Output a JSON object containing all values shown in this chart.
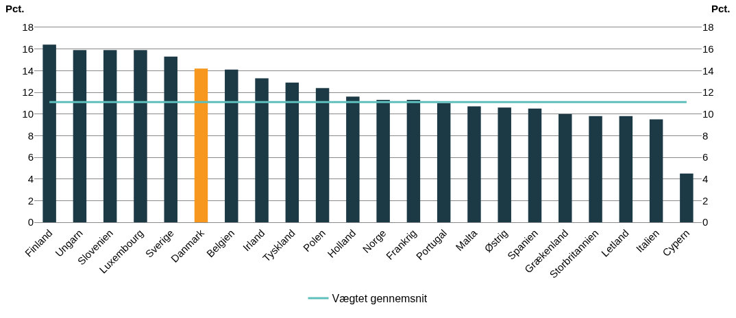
{
  "chart_data": {
    "type": "bar",
    "ylabel": "Pct.",
    "y2label": "Pct.",
    "categories": [
      "Finland",
      "Ungarn",
      "Slovenien",
      "Luxembourg",
      "Sverige",
      "Danmark",
      "Belgien",
      "Irland",
      "Tyskland",
      "Polen",
      "Holland",
      "Norge",
      "Frankrig",
      "Portugal",
      "Malta",
      "Østrig",
      "Spanien",
      "Grækenland",
      "Storbritannien",
      "Letland",
      "Italien",
      "Cypern"
    ],
    "series": [
      {
        "colors": [
          "#1c3a46",
          "#1c3a46",
          "#1c3a46",
          "#1c3a46",
          "#1c3a46",
          "#f7971e",
          "#1c3a46",
          "#1c3a46",
          "#1c3a46",
          "#1c3a46",
          "#1c3a46",
          "#1c3a46",
          "#1c3a46",
          "#1c3a46",
          "#1c3a46",
          "#1c3a46",
          "#1c3a46",
          "#1c3a46",
          "#1c3a46",
          "#1c3a46",
          "#1c3a46",
          "#1c3a46"
        ],
        "values": [
          16.4,
          15.9,
          15.9,
          15.9,
          15.3,
          14.2,
          14.1,
          13.3,
          12.9,
          12.4,
          11.6,
          11.3,
          11.3,
          11.0,
          10.7,
          10.6,
          10.5,
          10.0,
          9.8,
          9.8,
          9.5,
          4.5
        ]
      },
      {
        "type": "line",
        "name": "Vægtet gennemsnit",
        "color": "#5fbfbc",
        "values": [
          11.1,
          11.1,
          11.1,
          11.1,
          11.1,
          11.1,
          11.1,
          11.1,
          11.1,
          11.1,
          11.1,
          11.1,
          11.1,
          11.1,
          11.1,
          11.1,
          11.1,
          11.1,
          11.1,
          11.1,
          11.1,
          11.1
        ]
      }
    ],
    "ylim": [
      0,
      18
    ],
    "yticks": [
      0,
      2,
      4,
      6,
      8,
      10,
      12,
      14,
      16,
      18
    ],
    "y2lim": [
      0,
      18
    ],
    "y2ticks": [
      0,
      2,
      4,
      6,
      8,
      10,
      12,
      14,
      16,
      18
    ],
    "grid": "y",
    "legend": "bottom",
    "marker": "none",
    "line_style": "solid"
  }
}
